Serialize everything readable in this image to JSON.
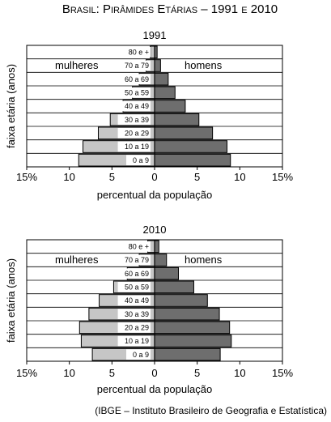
{
  "figure": {
    "title": "Brasil: Pirâmides Etárias – 1991 e 2010",
    "source": "(IBGE – Instituto Brasileiro de Geografia e Estatística)",
    "colors": {
      "female": "#c6c6c6",
      "male": "#6e6e6e",
      "line": "#000000"
    }
  },
  "chart_data": [
    {
      "type": "bar",
      "orientation": "horizontal-pyramid",
      "title": "1991",
      "xlabel": "percentual da população",
      "ylabel": "faixa etária (anos)",
      "xlim": [
        -15,
        15
      ],
      "xticks": [
        "15%",
        "10",
        "5",
        "0",
        "5",
        "10",
        "15%"
      ],
      "sex_labels": {
        "female": "mulheres",
        "male": "homens"
      },
      "categories": [
        "0 a 9",
        "10 a 19",
        "20 a 29",
        "30 a 39",
        "40 a 49",
        "50 a 59",
        "60 a 69",
        "70 a 79",
        "80 e +"
      ],
      "series": [
        {
          "name": "mulheres",
          "values": [
            8.9,
            8.4,
            6.6,
            5.2,
            3.7,
            2.6,
            1.8,
            1.0,
            0.5
          ]
        },
        {
          "name": "homens",
          "values": [
            8.9,
            8.5,
            6.8,
            5.2,
            3.6,
            2.4,
            1.6,
            0.7,
            0.3
          ]
        }
      ]
    },
    {
      "type": "bar",
      "orientation": "horizontal-pyramid",
      "title": "2010",
      "xlabel": "percentual da população",
      "ylabel": "faixa etária (anos)",
      "xlim": [
        -15,
        15
      ],
      "xticks": [
        "15%",
        "10",
        "5",
        "0",
        "5",
        "10",
        "15%"
      ],
      "sex_labels": {
        "female": "mulheres",
        "male": "homens"
      },
      "categories": [
        "0 a 9",
        "10 a 19",
        "20 a 29",
        "30 a 39",
        "40 a 49",
        "50 a 59",
        "60 a 69",
        "70 a 79",
        "80 e +"
      ],
      "series": [
        {
          "name": "mulheres",
          "values": [
            7.3,
            8.6,
            8.8,
            7.7,
            6.5,
            4.8,
            3.2,
            1.8,
            0.8
          ]
        },
        {
          "name": "homens",
          "values": [
            7.7,
            9.0,
            8.8,
            7.6,
            6.2,
            4.6,
            2.8,
            1.4,
            0.5
          ]
        }
      ]
    }
  ]
}
